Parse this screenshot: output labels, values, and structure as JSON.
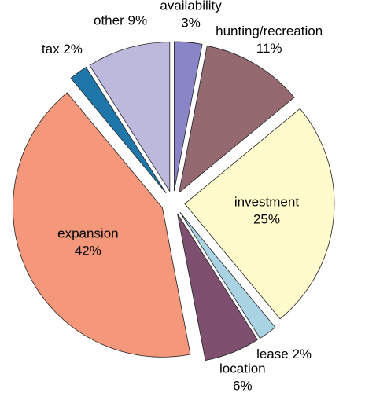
{
  "chart_data": {
    "type": "pie",
    "categories": [
      "availability",
      "hunting/recreation",
      "investment",
      "lease",
      "location",
      "expansion",
      "tax",
      "other"
    ],
    "values": [
      3,
      11,
      25,
      2,
      6,
      42,
      2,
      9
    ],
    "value_labels": [
      "3%",
      "11%",
      "25%",
      "2%",
      "6%",
      "42%",
      "2%",
      "9%"
    ],
    "colors": [
      "#8a85c6",
      "#94696f",
      "#fffbcc",
      "#a9d3e3",
      "#7e4f6f",
      "#f4977a",
      "#1f77a9",
      "#bdb9dd"
    ]
  }
}
